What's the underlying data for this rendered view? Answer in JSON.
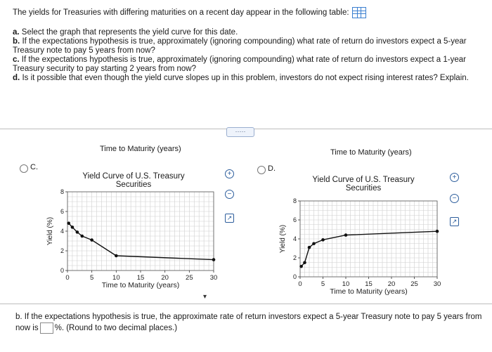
{
  "question": {
    "intro": "The yields for Treasuries with differing maturities on a recent day appear in the following table:",
    "parts": [
      {
        "label": "a.",
        "text": "Select the graph that represents the yield curve for this date."
      },
      {
        "label": "b.",
        "text": "If the expectations hypothesis is true, approximately (ignoring compounding) what rate of return do investors expect a 5-year Treasury note to pay 5 years from now?"
      },
      {
        "label": "c.",
        "text": "If the expectations hypothesis is true, approximately (ignoring compounding) what rate of return do investors expect a 1-year Treasury security to pay starting 2 years from now?"
      },
      {
        "label": "d.",
        "text": "Is it possible that even though the yield curve slopes up in this problem, investors do not expect rising interest rates? Explain."
      }
    ]
  },
  "expand_label": "·····",
  "options": [
    {
      "label": "C.",
      "top_axis_title": "Time to Maturity (years)",
      "title_line1": "Yield Curve of U.S. Treasury",
      "title_line2": "Securities"
    },
    {
      "label": "D.",
      "top_axis_title": "Time to Maturity (years)",
      "title_line1": "Yield Curve of U.S. Treasury",
      "title_line2": "Securities"
    }
  ],
  "icons": {
    "zoom_in": "zoom-in-icon",
    "zoom_out": "zoom-out-icon",
    "external": "external-link-icon"
  },
  "chart_data": [
    {
      "type": "line",
      "option": "C",
      "title": "Yield Curve of U.S. Treasury Securities",
      "xlabel": "Time to Maturity (years)",
      "ylabel": "Yield (%)",
      "xlim": [
        0,
        30
      ],
      "ylim": [
        0,
        8
      ],
      "xticks": [
        "0",
        "5",
        "10",
        "15",
        "20",
        "25",
        "30"
      ],
      "yticks": [
        "0",
        "2",
        "4",
        "6",
        "8"
      ],
      "grid": true,
      "x": [
        0.25,
        1,
        2,
        3,
        5,
        10,
        30
      ],
      "y": [
        4.8,
        4.4,
        3.9,
        3.5,
        3.1,
        1.5,
        1.1
      ]
    },
    {
      "type": "line",
      "option": "D",
      "title": "Yield Curve of U.S. Treasury Securities",
      "xlabel": "Time to Maturity (years)",
      "ylabel": "Yield (%)",
      "xlim": [
        0,
        30
      ],
      "ylim": [
        0,
        8
      ],
      "xticks": [
        "0",
        "5",
        "10",
        "15",
        "20",
        "25",
        "30"
      ],
      "yticks": [
        "0",
        "2",
        "4",
        "6",
        "8"
      ],
      "grid": true,
      "x": [
        0.25,
        1,
        2,
        3,
        5,
        10,
        30
      ],
      "y": [
        1.1,
        1.5,
        3.1,
        3.5,
        3.9,
        4.4,
        4.8
      ]
    }
  ],
  "bottom_question": {
    "text_before": "b. If the expectations hypothesis is true, the approximate rate of return investors expect a 5-year Treasury note to pay 5 years from now is",
    "text_after": "%. (Round to two decimal places.)"
  }
}
